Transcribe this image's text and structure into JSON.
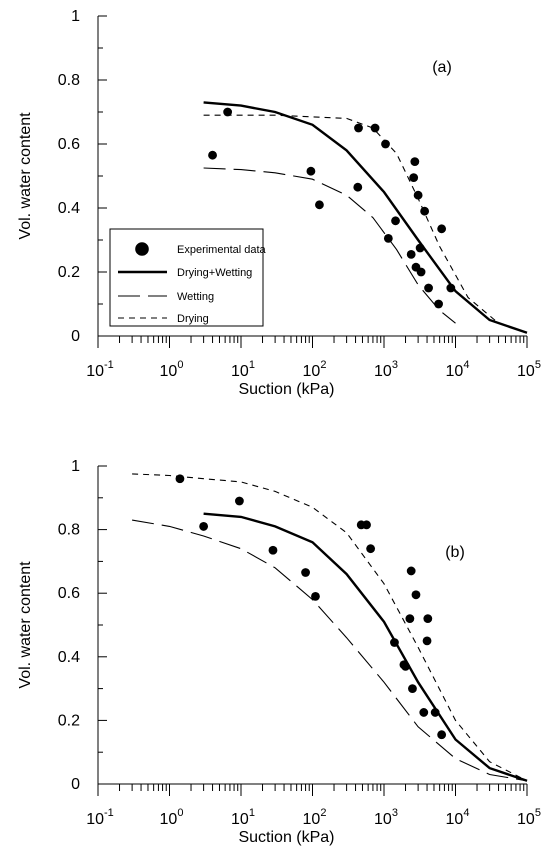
{
  "chart_data": [
    {
      "type": "scatter",
      "panel_label": "(a)",
      "xlabel": "Suction (kPa)",
      "ylabel": "Vol. water content",
      "x_scale": "log",
      "xlim": [
        0.1,
        100000
      ],
      "ylim": [
        0,
        1
      ],
      "x_ticks": [
        {
          "base": "10",
          "exp": "-1",
          "value": 0.1
        },
        {
          "base": "10",
          "exp": "0",
          "value": 1
        },
        {
          "base": "10",
          "exp": "1",
          "value": 10
        },
        {
          "base": "10",
          "exp": "2",
          "value": 100
        },
        {
          "base": "10",
          "exp": "3",
          "value": 1000
        },
        {
          "base": "10",
          "exp": "4",
          "value": 10000
        },
        {
          "base": "10",
          "exp": "5",
          "value": 100000
        }
      ],
      "y_ticks": [
        "0",
        "0.2",
        "0.4",
        "0.6",
        "0.8",
        "1"
      ],
      "grid": false,
      "legend_position": "left-middle",
      "legend": [
        {
          "label": "Experimental data",
          "style": "marker"
        },
        {
          "label": "Drying+Wetting",
          "style": "thick-solid"
        },
        {
          "label": "Wetting",
          "style": "long-dash"
        },
        {
          "label": "Drying",
          "style": "short-dash"
        }
      ],
      "points": [
        {
          "x": 4,
          "y": 0.565
        },
        {
          "x": 6.5,
          "y": 0.7
        },
        {
          "x": 95,
          "y": 0.515
        },
        {
          "x": 125,
          "y": 0.41
        },
        {
          "x": 430,
          "y": 0.465
        },
        {
          "x": 440,
          "y": 0.65
        },
        {
          "x": 750,
          "y": 0.65
        },
        {
          "x": 1050,
          "y": 0.6
        },
        {
          "x": 1150,
          "y": 0.305
        },
        {
          "x": 1450,
          "y": 0.36
        },
        {
          "x": 2400,
          "y": 0.255
        },
        {
          "x": 2700,
          "y": 0.545
        },
        {
          "x": 2600,
          "y": 0.495
        },
        {
          "x": 2800,
          "y": 0.215
        },
        {
          "x": 3000,
          "y": 0.44
        },
        {
          "x": 3200,
          "y": 0.275
        },
        {
          "x": 3300,
          "y": 0.2
        },
        {
          "x": 3700,
          "y": 0.39
        },
        {
          "x": 4200,
          "y": 0.15
        },
        {
          "x": 5800,
          "y": 0.1
        },
        {
          "x": 6400,
          "y": 0.335
        },
        {
          "x": 8600,
          "y": 0.15
        }
      ],
      "series": [
        {
          "name": "Drying+Wetting",
          "style": "thick-solid",
          "x": [
            3,
            10,
            30,
            100,
            300,
            1000,
            3000,
            10000,
            30000,
            100000
          ],
          "y": [
            0.73,
            0.72,
            0.7,
            0.66,
            0.58,
            0.45,
            0.3,
            0.14,
            0.05,
            0.01
          ]
        },
        {
          "name": "Wetting",
          "style": "long-dash",
          "x": [
            3,
            10,
            30,
            100,
            300,
            700,
            1500,
            3000,
            6000,
            10000
          ],
          "y": [
            0.525,
            0.52,
            0.51,
            0.49,
            0.44,
            0.37,
            0.27,
            0.16,
            0.08,
            0.04
          ]
        },
        {
          "name": "Drying",
          "style": "short-dash",
          "x": [
            3,
            30,
            300,
            700,
            1500,
            3000,
            6000,
            15000,
            40000,
            100000
          ],
          "y": [
            0.69,
            0.69,
            0.68,
            0.65,
            0.57,
            0.43,
            0.28,
            0.12,
            0.04,
            0.01
          ]
        }
      ]
    },
    {
      "type": "scatter",
      "panel_label": "(b)",
      "xlabel": "Suction (kPa)",
      "ylabel": "Vol. water content",
      "x_scale": "log",
      "xlim": [
        0.1,
        100000
      ],
      "ylim": [
        0,
        1
      ],
      "x_ticks": [
        {
          "base": "10",
          "exp": "-1",
          "value": 0.1
        },
        {
          "base": "10",
          "exp": "0",
          "value": 1
        },
        {
          "base": "10",
          "exp": "1",
          "value": 10
        },
        {
          "base": "10",
          "exp": "2",
          "value": 100
        },
        {
          "base": "10",
          "exp": "3",
          "value": 1000
        },
        {
          "base": "10",
          "exp": "4",
          "value": 10000
        },
        {
          "base": "10",
          "exp": "5",
          "value": 100000
        }
      ],
      "y_ticks": [
        "0",
        "0.2",
        "0.4",
        "0.6",
        "0.8",
        "1"
      ],
      "grid": false,
      "points": [
        {
          "x": 1.4,
          "y": 0.96
        },
        {
          "x": 3,
          "y": 0.81
        },
        {
          "x": 9.5,
          "y": 0.89
        },
        {
          "x": 28,
          "y": 0.735
        },
        {
          "x": 80,
          "y": 0.665
        },
        {
          "x": 110,
          "y": 0.59
        },
        {
          "x": 480,
          "y": 0.815
        },
        {
          "x": 570,
          "y": 0.815
        },
        {
          "x": 650,
          "y": 0.74
        },
        {
          "x": 1400,
          "y": 0.445
        },
        {
          "x": 1900,
          "y": 0.375
        },
        {
          "x": 2000,
          "y": 0.37
        },
        {
          "x": 2300,
          "y": 0.52
        },
        {
          "x": 2400,
          "y": 0.67
        },
        {
          "x": 2500,
          "y": 0.3
        },
        {
          "x": 2800,
          "y": 0.595
        },
        {
          "x": 3600,
          "y": 0.225
        },
        {
          "x": 4000,
          "y": 0.45
        },
        {
          "x": 4100,
          "y": 0.52
        },
        {
          "x": 5200,
          "y": 0.225
        },
        {
          "x": 6400,
          "y": 0.155
        }
      ],
      "series": [
        {
          "name": "Drying+Wetting",
          "style": "thick-solid",
          "x": [
            3,
            10,
            30,
            100,
            300,
            1000,
            3000,
            10000,
            30000,
            100000
          ],
          "y": [
            0.85,
            0.84,
            0.81,
            0.76,
            0.66,
            0.51,
            0.32,
            0.14,
            0.05,
            0.01
          ]
        },
        {
          "name": "Wetting",
          "style": "long-dash",
          "x": [
            0.3,
            1,
            3,
            10,
            30,
            100,
            300,
            1000,
            3000,
            10000,
            30000,
            100000
          ],
          "y": [
            0.83,
            0.81,
            0.78,
            0.74,
            0.68,
            0.58,
            0.46,
            0.32,
            0.18,
            0.08,
            0.03,
            0.01
          ]
        },
        {
          "name": "Drying",
          "style": "short-dash",
          "x": [
            0.3,
            1,
            3,
            10,
            30,
            100,
            300,
            1000,
            3000,
            10000,
            30000,
            100000
          ],
          "y": [
            0.975,
            0.97,
            0.96,
            0.95,
            0.92,
            0.87,
            0.79,
            0.63,
            0.43,
            0.2,
            0.07,
            0.01
          ]
        }
      ]
    }
  ]
}
